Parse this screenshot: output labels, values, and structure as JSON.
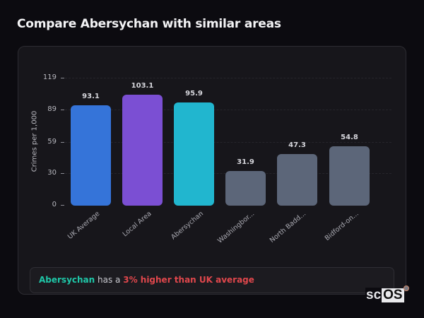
{
  "header": {
    "title": "Compare Abersychan with similar areas"
  },
  "chart_data": {
    "type": "bar",
    "title": "Compare Abersychan with similar areas",
    "xlabel": "",
    "ylabel": "Crimes per 1,000",
    "ylim": [
      0,
      119
    ],
    "yticks": [
      0,
      30,
      59,
      89,
      119
    ],
    "grid": true,
    "legend": "none",
    "categories": [
      "UK Average",
      "Local Area",
      "Abersychan",
      "Washingbor...",
      "North Badd...",
      "Bidford-on..."
    ],
    "values": [
      93.1,
      103.1,
      95.9,
      31.9,
      47.3,
      54.8
    ],
    "value_labels": [
      "93.1",
      "103.1",
      "95.9",
      "31.9",
      "47.3",
      "54.8"
    ],
    "colors": [
      "#3574d9",
      "#7b4fd3",
      "#21b6cf",
      "#5c6679",
      "#5c6679",
      "#5c6679"
    ]
  },
  "info": {
    "area": "Abersychan",
    "middle": " has a ",
    "comparison": "3% higher than UK average"
  },
  "colors": {
    "background": "#0c0b10",
    "card": "#17161b",
    "accent_area": "#1fc7a8",
    "accent_higher": "#e0474c"
  },
  "branding": {
    "logo_left": "sc",
    "logo_right": "OS"
  }
}
